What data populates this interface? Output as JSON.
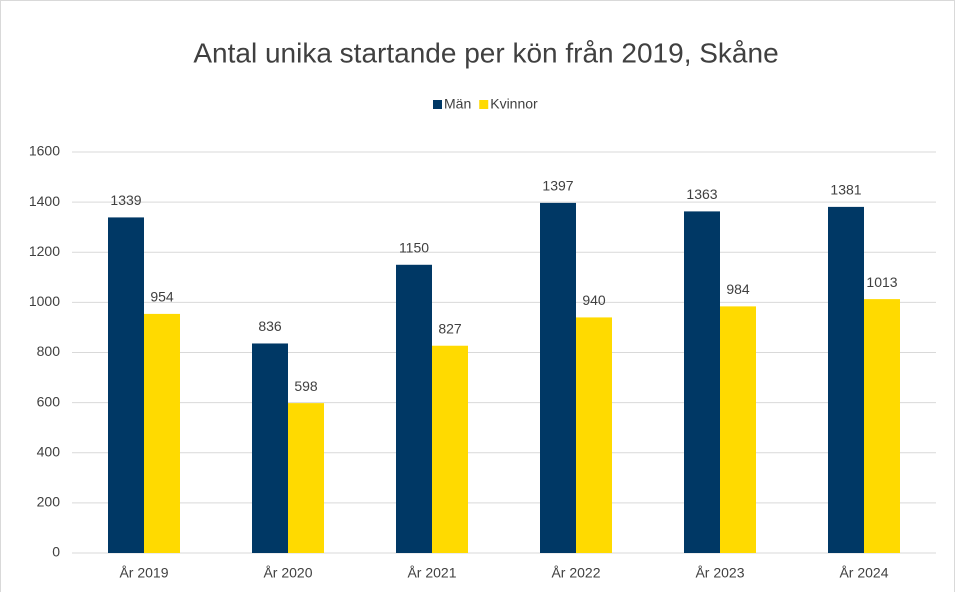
{
  "chart_data": {
    "type": "bar",
    "title": "Antal unika startande per kön från 2019, Skåne",
    "categories": [
      "År 2019",
      "År 2020",
      "År 2021",
      "År 2022",
      "År 2023",
      "År 2024"
    ],
    "series": [
      {
        "name": "Män",
        "color": "#003865",
        "values": [
          1339,
          836,
          1150,
          1397,
          1363,
          1381
        ]
      },
      {
        "name": "Kvinnor",
        "color": "#ffda00",
        "values": [
          954,
          598,
          827,
          940,
          984,
          1013
        ]
      }
    ],
    "ylim": [
      0,
      1600
    ],
    "yticks": [
      0,
      200,
      400,
      600,
      800,
      1000,
      1200,
      1400,
      1600
    ],
    "grid": true,
    "legend": "top"
  }
}
